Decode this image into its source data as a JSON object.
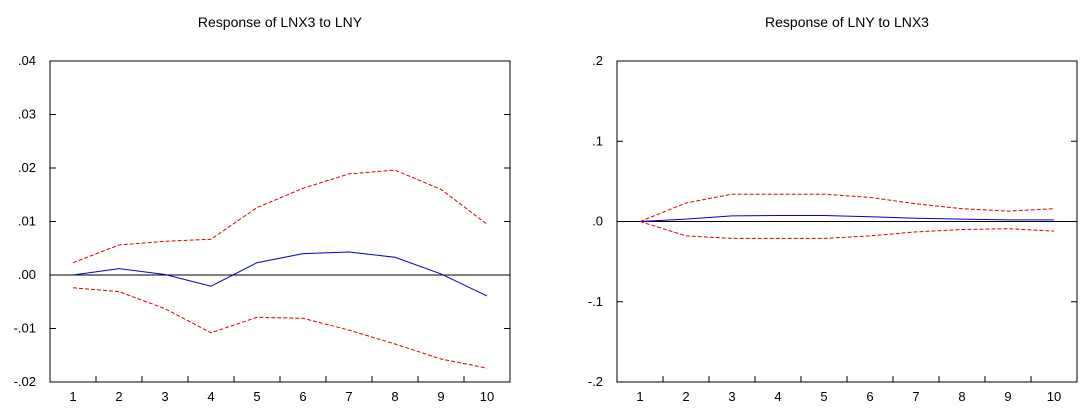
{
  "chart_data": [
    {
      "type": "line",
      "title": "Response of LNX3 to LNY",
      "x": [
        1,
        2,
        3,
        4,
        5,
        6,
        7,
        8,
        9,
        10
      ],
      "ylim": [
        -0.02,
        0.04
      ],
      "yticks": [
        ".04",
        ".03",
        ".02",
        ".01",
        ".00",
        "-.01",
        "-.02"
      ],
      "ytick_values": [
        0.04,
        0.03,
        0.02,
        0.01,
        0.0,
        -0.01,
        -0.02
      ],
      "xticks": [
        "1",
        "2",
        "3",
        "4",
        "5",
        "6",
        "7",
        "8",
        "9",
        "10"
      ],
      "zero_line": true,
      "series": [
        {
          "role": "response",
          "color": "#0000cc",
          "style": "solid",
          "values": [
            0.0,
            0.0012,
            0.0001,
            -0.0021,
            0.0023,
            0.004,
            0.0043,
            0.0033,
            0.0002,
            -0.0039
          ]
        },
        {
          "role": "upper-band",
          "color": "#dd0000",
          "style": "dashed",
          "values": [
            0.0023,
            0.0056,
            0.0063,
            0.0067,
            0.0126,
            0.0162,
            0.0189,
            0.0196,
            0.016,
            0.0095
          ]
        },
        {
          "role": "lower-band",
          "color": "#dd0000",
          "style": "dashed",
          "values": [
            -0.0024,
            -0.0031,
            -0.0063,
            -0.0108,
            -0.0079,
            -0.0081,
            -0.0103,
            -0.0129,
            -0.0157,
            -0.0174
          ]
        }
      ]
    },
    {
      "type": "line",
      "title": "Response of LNY to LNX3",
      "x": [
        1,
        2,
        3,
        4,
        5,
        6,
        7,
        8,
        9,
        10
      ],
      "ylim": [
        -0.2,
        0.2
      ],
      "yticks": [
        ".2",
        ".1",
        ".0",
        "-.1",
        "-.2"
      ],
      "ytick_values": [
        0.2,
        0.1,
        0.0,
        -0.1,
        -0.2
      ],
      "xticks": [
        "1",
        "2",
        "3",
        "4",
        "5",
        "6",
        "7",
        "8",
        "9",
        "10"
      ],
      "zero_line": true,
      "series": [
        {
          "role": "response",
          "color": "#0000cc",
          "style": "solid",
          "values": [
            0.0,
            0.003,
            0.007,
            0.0075,
            0.0075,
            0.006,
            0.004,
            0.003,
            0.002,
            0.002
          ]
        },
        {
          "role": "upper-band",
          "color": "#dd0000",
          "style": "dashed",
          "values": [
            0.0,
            0.023,
            0.034,
            0.034,
            0.034,
            0.03,
            0.022,
            0.016,
            0.013,
            0.016
          ]
        },
        {
          "role": "lower-band",
          "color": "#dd0000",
          "style": "dashed",
          "values": [
            0.0,
            -0.018,
            -0.021,
            -0.021,
            -0.021,
            -0.018,
            -0.013,
            -0.01,
            -0.009,
            -0.012
          ]
        }
      ]
    }
  ]
}
